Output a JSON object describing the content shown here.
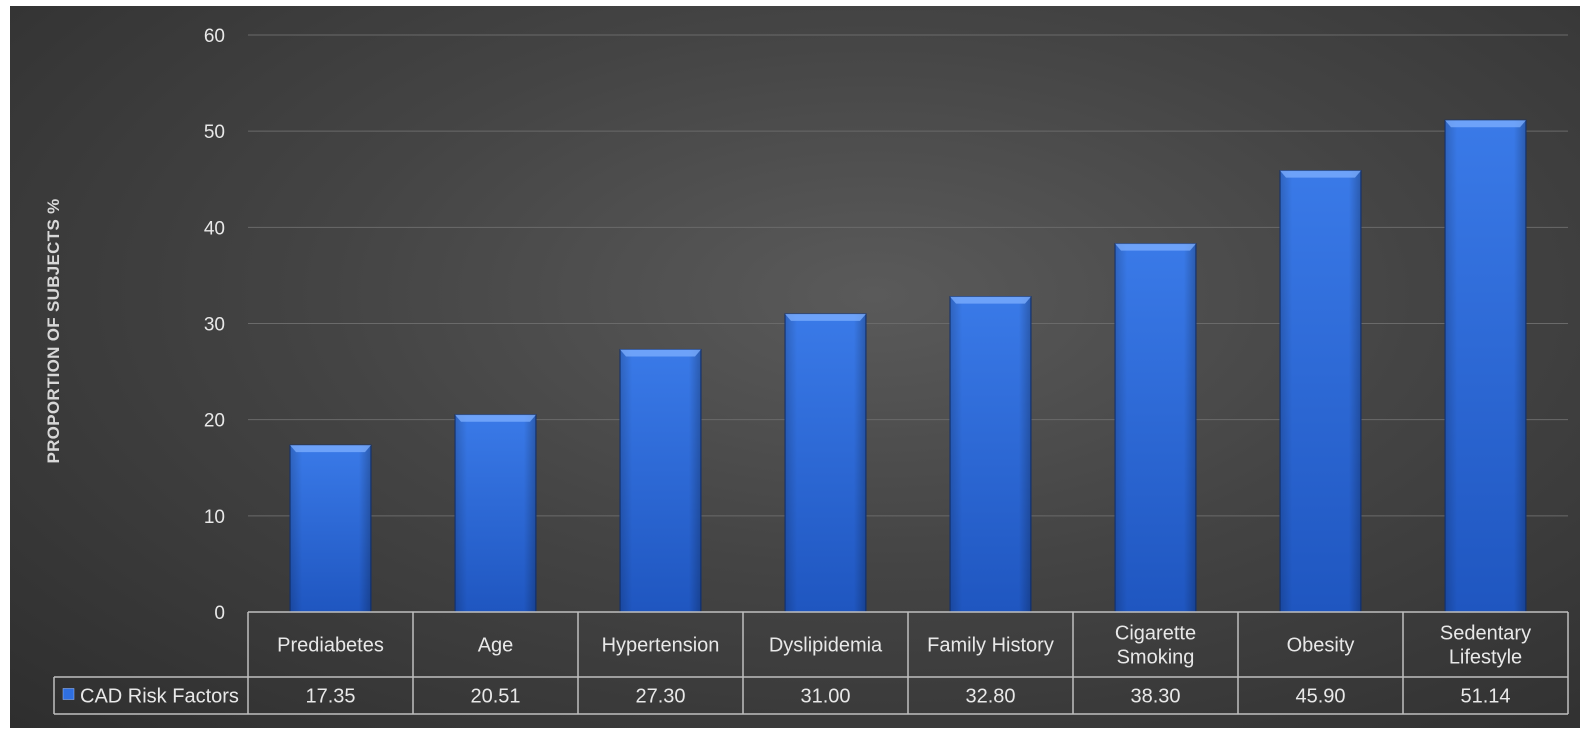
{
  "chart_data": {
    "type": "bar",
    "title": "",
    "xlabel": "",
    "ylabel": "PROPORTION OF SUBJECTS %",
    "ylim": [
      0,
      60
    ],
    "yticks": [
      0,
      10,
      20,
      30,
      40,
      50,
      60
    ],
    "grid": true,
    "categories": [
      [
        "Prediabetes"
      ],
      [
        "Age"
      ],
      [
        "Hypertension"
      ],
      [
        "Dyslipidemia"
      ],
      [
        "Family History"
      ],
      [
        "Cigarette",
        "Smoking"
      ],
      [
        "Obesity"
      ],
      [
        "Sedentary",
        "Lifestyle"
      ]
    ],
    "series": [
      {
        "name": "CAD Risk Factors",
        "values": [
          17.35,
          20.51,
          27.3,
          31.0,
          32.8,
          38.3,
          45.9,
          51.14
        ],
        "labels": [
          "17.35",
          "20.51",
          "27.30",
          "31.00",
          "32.80",
          "38.30",
          "45.90",
          "51.14"
        ],
        "color": "#2f6fe0"
      }
    ],
    "data_table": true
  },
  "colors": {
    "background_center": "#5a5a5a",
    "background_edge": "#2e2e2e",
    "bar_light": "#3a7ae8",
    "bar_dark": "#1f56c0",
    "text": "#e8e8e8",
    "gridline": "#6a6a6a",
    "table_border": "#bfbfbf"
  }
}
